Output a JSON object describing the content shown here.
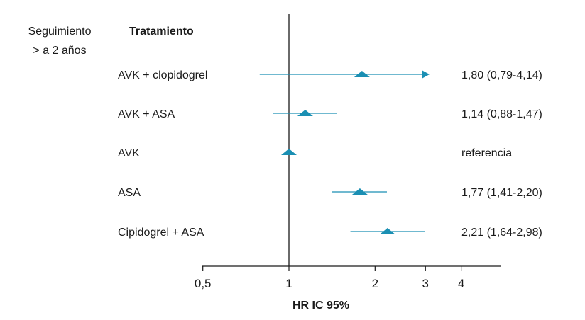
{
  "chart_data": {
    "type": "forest",
    "group_header_line1": "Seguimiento",
    "group_header_line2": "> a 2 años",
    "treatment_header": "Tratamiento",
    "xlabel": "HR IC 95%",
    "x_scale": "log",
    "xlim": [
      0.5,
      4
    ],
    "x_ticks": [
      0.5,
      1,
      2,
      3,
      4
    ],
    "x_tick_labels": [
      "0,5",
      "1",
      "2",
      "3",
      "4"
    ],
    "reference_line": 1,
    "marker_color": "#1a8fb3",
    "rows": [
      {
        "label": "AVK + clopidogrel",
        "hr": 1.8,
        "lo": 0.79,
        "hi": 4.14,
        "arrow": true,
        "value_text": "1,80 (0,79-4,14)"
      },
      {
        "label": "AVK + ASA",
        "hr": 1.14,
        "lo": 0.88,
        "hi": 1.47,
        "arrow": false,
        "value_text": "1,14 (0,88-1,47)"
      },
      {
        "label": "AVK",
        "hr": 1.0,
        "lo": null,
        "hi": null,
        "arrow": false,
        "value_text": "referencia"
      },
      {
        "label": "ASA",
        "hr": 1.77,
        "lo": 1.41,
        "hi": 2.2,
        "arrow": false,
        "value_text": "1,77 (1,41-2,20)"
      },
      {
        "label": "Cipidogrel + ASA",
        "hr": 2.21,
        "lo": 1.64,
        "hi": 2.98,
        "arrow": false,
        "value_text": "2,21 (1,64-2,98)"
      }
    ]
  }
}
